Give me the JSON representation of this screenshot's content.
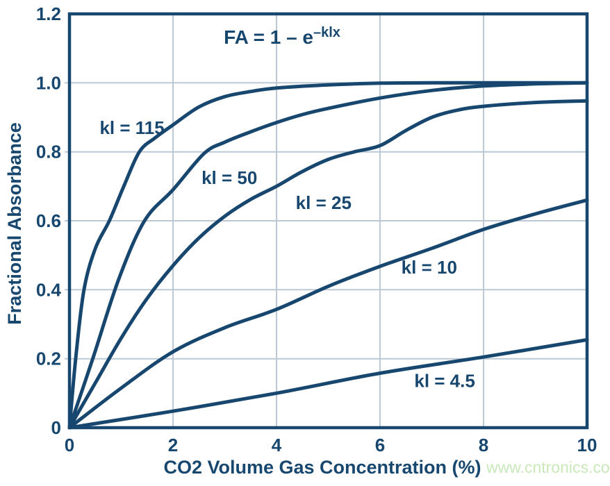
{
  "chart": {
    "formula": {
      "base": "FA = 1 – e",
      "exponent": "–klx"
    },
    "x_axis": {
      "label": "CO2 Volume Gas Concentration (%)",
      "tick_labels": [
        "0",
        "2",
        "4",
        "6",
        "8",
        "10"
      ]
    },
    "y_axis": {
      "label": "Fractional Absorbance",
      "tick_labels": [
        "0",
        "0.2",
        "0.4",
        "0.6",
        "0.8",
        "1.0",
        "1.2"
      ]
    },
    "watermark": "www.cntronics.com",
    "colors": {
      "line": "#17476f",
      "grid": "#bcc9d4",
      "text": "#17476f",
      "watermark": "#c9e8ba",
      "background": "#ffffff"
    }
  },
  "chart_data": {
    "type": "line",
    "title": "FA = 1 – e^(–klx)",
    "xlabel": "CO2 Volume Gas Concentration (%)",
    "ylabel": "Fractional Absorbance",
    "xlim": [
      0,
      10
    ],
    "ylim": [
      0,
      1.2
    ],
    "x_ticks": [
      0,
      2,
      4,
      6,
      8,
      10
    ],
    "y_ticks": [
      0,
      0.2,
      0.4,
      0.6,
      0.8,
      1.0,
      1.2
    ],
    "grid": true,
    "legend_position": "inline-labels",
    "series": [
      {
        "name": "kl = 115",
        "label": "kl = 115",
        "label_at": {
          "x": 1.21,
          "y": 0.87
        },
        "points": [
          [
            0,
            0
          ],
          [
            0.12,
            0.2
          ],
          [
            0.28,
            0.4
          ],
          [
            0.5,
            0.52
          ],
          [
            0.77,
            0.6
          ],
          [
            1.05,
            0.7
          ],
          [
            1.35,
            0.8
          ],
          [
            1.65,
            0.84
          ],
          [
            2,
            0.878
          ],
          [
            2.5,
            0.93
          ],
          [
            3,
            0.96
          ],
          [
            3.5,
            0.975
          ],
          [
            4,
            0.985
          ],
          [
            5,
            0.994
          ],
          [
            6,
            0.999
          ],
          [
            7,
            1
          ],
          [
            8,
            1
          ],
          [
            9,
            1
          ],
          [
            10,
            1
          ]
        ]
      },
      {
        "name": "kl = 50",
        "label": "kl = 50",
        "label_at": {
          "x": 3.09,
          "y": 0.725
        },
        "points": [
          [
            0,
            0
          ],
          [
            0.45,
            0.2
          ],
          [
            0.95,
            0.43
          ],
          [
            1.45,
            0.6
          ],
          [
            2,
            0.69
          ],
          [
            2.6,
            0.795
          ],
          [
            3,
            0.828
          ],
          [
            3.5,
            0.858
          ],
          [
            4,
            0.885
          ],
          [
            4.5,
            0.908
          ],
          [
            5,
            0.926
          ],
          [
            6,
            0.956
          ],
          [
            7,
            0.978
          ],
          [
            8,
            0.991
          ],
          [
            9,
            0.997
          ],
          [
            10,
            1
          ]
        ]
      },
      {
        "name": "kl = 25",
        "label": "kl = 25",
        "label_at": {
          "x": 4.91,
          "y": 0.652
        },
        "points": [
          [
            0,
            0
          ],
          [
            0.5,
            0.13
          ],
          [
            1,
            0.26
          ],
          [
            1.5,
            0.375
          ],
          [
            2,
            0.47
          ],
          [
            2.5,
            0.55
          ],
          [
            3,
            0.613
          ],
          [
            3.5,
            0.662
          ],
          [
            4,
            0.7
          ],
          [
            4.5,
            0.743
          ],
          [
            5,
            0.778
          ],
          [
            5.5,
            0.8
          ],
          [
            6,
            0.818
          ],
          [
            6.5,
            0.862
          ],
          [
            7,
            0.9
          ],
          [
            7.5,
            0.921
          ],
          [
            8,
            0.932
          ],
          [
            9,
            0.943
          ],
          [
            10,
            0.948
          ]
        ]
      },
      {
        "name": "kl = 10",
        "label": "kl = 10",
        "label_at": {
          "x": 6.95,
          "y": 0.465
        },
        "points": [
          [
            0,
            0
          ],
          [
            1,
            0.115
          ],
          [
            2,
            0.22
          ],
          [
            3,
            0.29
          ],
          [
            4,
            0.343
          ],
          [
            5,
            0.41
          ],
          [
            6,
            0.468
          ],
          [
            7,
            0.52
          ],
          [
            8,
            0.575
          ],
          [
            9,
            0.62
          ],
          [
            10,
            0.66
          ]
        ]
      },
      {
        "name": "kl = 4.5",
        "label": "kl = 4.5",
        "label_at": {
          "x": 7.25,
          "y": 0.136
        },
        "points": [
          [
            0,
            0
          ],
          [
            2,
            0.048
          ],
          [
            4,
            0.1
          ],
          [
            6,
            0.158
          ],
          [
            8,
            0.205
          ],
          [
            10,
            0.255
          ]
        ]
      }
    ]
  }
}
